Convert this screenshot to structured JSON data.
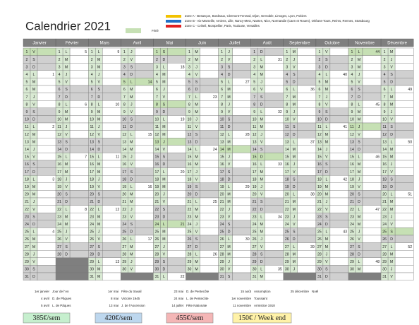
{
  "title": "Calendrier 2021",
  "legend": [
    {
      "label": "Zone A - Besançon, Bordeaux, Clermont-Ferrand, Dijon, Grenoble, Limoges, Lyon, Poitiers",
      "color": "#f2c200"
    },
    {
      "label": "Zone B - Aix-Marseille, Amiens, Lille, Nancy-Metz, Nantes, Nice, Normandie (Caen et Rouen), Orléans-Tours, Reims, Rennes, Strasbourg",
      "color": "#1f6fc5"
    },
    {
      "label": "Zone C - Créteil, Montpellier, Paris, Toulouse, Versailles",
      "color": "#e02020"
    },
    {
      "label": "Férié",
      "color": "#c6e0b4"
    }
  ],
  "weekend_color": "#d0d0d0",
  "holiday_cells": [
    [
      0,
      1
    ],
    [
      3,
      5
    ],
    [
      4,
      1
    ],
    [
      4,
      8
    ],
    [
      4,
      13
    ],
    [
      4,
      24
    ],
    [
      6,
      14
    ],
    [
      7,
      15
    ],
    [
      10,
      1
    ],
    [
      10,
      11
    ],
    [
      11,
      25
    ]
  ],
  "months": [
    {
      "name": "Janvier",
      "days": [
        1,
        2,
        3,
        4,
        5,
        6,
        7,
        8,
        9,
        10,
        11,
        12,
        13,
        14,
        15,
        16,
        17,
        18,
        19,
        20,
        21,
        22,
        23,
        24,
        25,
        26,
        27,
        28,
        29,
        30,
        31
      ],
      "weekdays": [
        "V",
        "S",
        "D",
        "L",
        "M",
        "M",
        "J",
        "V",
        "S",
        "D",
        "L",
        "M",
        "M",
        "J",
        "V",
        "S",
        "D",
        "L",
        "M",
        "M",
        "J",
        "V",
        "S",
        "D",
        "L",
        "M",
        "M",
        "J",
        "V",
        "S",
        "D"
      ],
      "weeks": [
        {
          "day": 4,
          "week": 1
        },
        {
          "day": 11,
          "week": 2
        },
        {
          "day": 18,
          "week": 3
        },
        {
          "day": 25,
          "week": 4
        }
      ]
    },
    {
      "name": "Février",
      "days": [
        1,
        2,
        3,
        4,
        5,
        6,
        7,
        8,
        9,
        10,
        11,
        12,
        13,
        14,
        15,
        16,
        17,
        18,
        19,
        20,
        21,
        22,
        23,
        24,
        25,
        26,
        27,
        28
      ],
      "weekdays": [
        "L",
        "M",
        "M",
        "J",
        "V",
        "S",
        "D",
        "L",
        "M",
        "M",
        "J",
        "V",
        "S",
        "D",
        "L",
        "M",
        "M",
        "J",
        "V",
        "S",
        "D",
        "L",
        "M",
        "M",
        "J",
        "V",
        "S",
        "D"
      ],
      "weeks": [
        {
          "day": 1,
          "week": 5
        },
        {
          "day": 8,
          "week": 6
        },
        {
          "day": 15,
          "week": 7
        },
        {
          "day": 22,
          "week": 8
        }
      ]
    },
    {
      "name": "Mars",
      "days": [
        1,
        2,
        3,
        4,
        5,
        6,
        7,
        8,
        9,
        10,
        11,
        12,
        13,
        14,
        15,
        16,
        17,
        18,
        19,
        20,
        21,
        22,
        23,
        24,
        25,
        26,
        27,
        28,
        29,
        30,
        31
      ],
      "weekdays": [
        "L",
        "M",
        "M",
        "J",
        "V",
        "S",
        "D",
        "L",
        "M",
        "M",
        "J",
        "V",
        "S",
        "D",
        "L",
        "M",
        "M",
        "J",
        "V",
        "S",
        "D",
        "L",
        "M",
        "M",
        "J",
        "V",
        "S",
        "D",
        "L",
        "M",
        "M"
      ],
      "weeks": [
        {
          "day": 1,
          "week": 9
        },
        {
          "day": 8,
          "week": 10
        },
        {
          "day": 15,
          "week": 11
        },
        {
          "day": 22,
          "week": 12
        },
        {
          "day": 29,
          "week": 13
        }
      ]
    },
    {
      "name": "Avril",
      "days": [
        1,
        2,
        3,
        4,
        5,
        6,
        7,
        8,
        9,
        10,
        11,
        12,
        13,
        14,
        15,
        16,
        17,
        18,
        19,
        20,
        21,
        22,
        23,
        24,
        25,
        26,
        27,
        28,
        29,
        30
      ],
      "weekdays": [
        "J",
        "V",
        "S",
        "D",
        "L",
        "M",
        "M",
        "J",
        "V",
        "S",
        "D",
        "L",
        "M",
        "M",
        "J",
        "V",
        "S",
        "D",
        "L",
        "M",
        "M",
        "J",
        "V",
        "S",
        "D",
        "L",
        "M",
        "M",
        "J",
        "V"
      ],
      "weeks": [
        {
          "day": 5,
          "week": 14
        },
        {
          "day": 12,
          "week": 15
        },
        {
          "day": 19,
          "week": 16
        },
        {
          "day": 26,
          "week": 17
        }
      ]
    },
    {
      "name": "Mai",
      "days": [
        1,
        2,
        3,
        4,
        5,
        6,
        7,
        8,
        9,
        10,
        11,
        12,
        13,
        14,
        15,
        16,
        17,
        18,
        19,
        20,
        21,
        22,
        23,
        24,
        25,
        26,
        27,
        28,
        29,
        30,
        31
      ],
      "weekdays": [
        "S",
        "D",
        "L",
        "M",
        "M",
        "J",
        "V",
        "S",
        "D",
        "L",
        "M",
        "M",
        "J",
        "V",
        "S",
        "D",
        "L",
        "M",
        "M",
        "J",
        "V",
        "S",
        "D",
        "L",
        "M",
        "M",
        "J",
        "V",
        "S",
        "D",
        "L"
      ],
      "weeks": [
        {
          "day": 3,
          "week": 18
        },
        {
          "day": 10,
          "week": 19
        },
        {
          "day": 17,
          "week": 20
        },
        {
          "day": 24,
          "week": 21
        },
        {
          "day": 31,
          "week": 22
        }
      ]
    },
    {
      "name": "Juin",
      "days": [
        1,
        2,
        3,
        4,
        5,
        6,
        7,
        8,
        9,
        10,
        11,
        12,
        13,
        14,
        15,
        16,
        17,
        18,
        19,
        20,
        21,
        22,
        23,
        24,
        25,
        26,
        27,
        28,
        29,
        30
      ],
      "weekdays": [
        "M",
        "M",
        "J",
        "V",
        "S",
        "D",
        "L",
        "M",
        "M",
        "J",
        "V",
        "S",
        "D",
        "L",
        "M",
        "M",
        "J",
        "V",
        "S",
        "D",
        "L",
        "M",
        "M",
        "J",
        "V",
        "S",
        "D",
        "L",
        "M",
        "M"
      ],
      "weeks": [
        {
          "day": 7,
          "week": 23
        },
        {
          "day": 14,
          "week": 24
        },
        {
          "day": 21,
          "week": 25
        },
        {
          "day": 28,
          "week": 26
        }
      ]
    },
    {
      "name": "Juillet",
      "days": [
        1,
        2,
        3,
        4,
        5,
        6,
        7,
        8,
        9,
        10,
        11,
        12,
        13,
        14,
        15,
        16,
        17,
        18,
        19,
        20,
        21,
        22,
        23,
        24,
        25,
        26,
        27,
        28,
        29,
        30,
        31
      ],
      "weekdays": [
        "J",
        "V",
        "S",
        "D",
        "L",
        "M",
        "M",
        "J",
        "V",
        "S",
        "D",
        "L",
        "M",
        "M",
        "J",
        "V",
        "S",
        "D",
        "L",
        "M",
        "M",
        "J",
        "V",
        "S",
        "D",
        "L",
        "M",
        "M",
        "J",
        "V",
        "S"
      ],
      "weeks": [
        {
          "day": 5,
          "week": 27
        },
        {
          "day": 12,
          "week": 28
        },
        {
          "day": 19,
          "week": 29
        },
        {
          "day": 26,
          "week": 30
        }
      ]
    },
    {
      "name": "Août",
      "days": [
        1,
        2,
        3,
        4,
        5,
        6,
        7,
        8,
        9,
        10,
        11,
        12,
        13,
        14,
        15,
        16,
        17,
        18,
        19,
        20,
        21,
        22,
        23,
        24,
        25,
        26,
        27,
        28,
        29,
        30,
        31
      ],
      "weekdays": [
        "D",
        "L",
        "M",
        "M",
        "J",
        "V",
        "S",
        "D",
        "L",
        "M",
        "M",
        "J",
        "V",
        "S",
        "D",
        "L",
        "M",
        "M",
        "J",
        "V",
        "S",
        "D",
        "L",
        "M",
        "M",
        "J",
        "V",
        "S",
        "D",
        "L",
        "M"
      ],
      "weeks": [
        {
          "day": 2,
          "week": 31
        },
        {
          "day": 9,
          "week": 32
        },
        {
          "day": 16,
          "week": 33
        },
        {
          "day": 23,
          "week": 34
        },
        {
          "day": 30,
          "week": 35
        }
      ]
    },
    {
      "name": "Septembre",
      "days": [
        1,
        2,
        3,
        4,
        5,
        6,
        7,
        8,
        9,
        10,
        11,
        12,
        13,
        14,
        15,
        16,
        17,
        18,
        19,
        20,
        21,
        22,
        23,
        24,
        25,
        26,
        27,
        28,
        29,
        30
      ],
      "weekdays": [
        "M",
        "J",
        "V",
        "S",
        "D",
        "L",
        "M",
        "M",
        "J",
        "V",
        "S",
        "D",
        "L",
        "M",
        "M",
        "J",
        "V",
        "S",
        "D",
        "L",
        "M",
        "M",
        "J",
        "V",
        "S",
        "D",
        "L",
        "M",
        "M",
        "J"
      ],
      "weeks": [
        {
          "day": 6,
          "week": 36
        },
        {
          "day": 13,
          "week": 37
        },
        {
          "day": 20,
          "week": 38
        },
        {
          "day": 27,
          "week": 39
        }
      ]
    },
    {
      "name": "Octobre",
      "days": [
        1,
        2,
        3,
        4,
        5,
        6,
        7,
        8,
        9,
        10,
        11,
        12,
        13,
        14,
        15,
        16,
        17,
        18,
        19,
        20,
        21,
        22,
        23,
        24,
        25,
        26,
        27,
        28,
        29,
        30,
        31
      ],
      "weekdays": [
        "V",
        "S",
        "D",
        "L",
        "M",
        "M",
        "J",
        "V",
        "S",
        "D",
        "L",
        "M",
        "M",
        "J",
        "V",
        "S",
        "D",
        "L",
        "M",
        "M",
        "J",
        "V",
        "S",
        "D",
        "L",
        "M",
        "M",
        "J",
        "V",
        "S",
        "D"
      ],
      "weeks": [
        {
          "day": 4,
          "week": 40
        },
        {
          "day": 11,
          "week": 41
        },
        {
          "day": 18,
          "week": 42
        },
        {
          "day": 25,
          "week": 43
        }
      ]
    },
    {
      "name": "Novembre",
      "days": [
        1,
        2,
        3,
        4,
        5,
        6,
        7,
        8,
        9,
        10,
        11,
        12,
        13,
        14,
        15,
        16,
        17,
        18,
        19,
        20,
        21,
        22,
        23,
        24,
        25,
        26,
        27,
        28,
        29,
        30
      ],
      "weekdays": [
        "L",
        "M",
        "M",
        "J",
        "V",
        "S",
        "D",
        "L",
        "M",
        "M",
        "J",
        "V",
        "S",
        "D",
        "L",
        "M",
        "M",
        "J",
        "V",
        "S",
        "D",
        "L",
        "M",
        "M",
        "J",
        "V",
        "S",
        "D",
        "L",
        "M"
      ],
      "weeks": [
        {
          "day": 1,
          "week": 44
        },
        {
          "day": 8,
          "week": 45
        },
        {
          "day": 15,
          "week": 46
        },
        {
          "day": 22,
          "week": 47
        },
        {
          "day": 29,
          "week": 48
        }
      ]
    },
    {
      "name": "Décembre",
      "days": [
        1,
        2,
        3,
        4,
        5,
        6,
        7,
        8,
        9,
        10,
        11,
        12,
        13,
        14,
        15,
        16,
        17,
        18,
        19,
        20,
        21,
        22,
        23,
        24,
        25,
        26,
        27,
        28,
        29,
        30,
        31
      ],
      "weekdays": [
        "M",
        "J",
        "V",
        "S",
        "D",
        "L",
        "M",
        "M",
        "J",
        "V",
        "S",
        "D",
        "L",
        "M",
        "M",
        "J",
        "V",
        "S",
        "D",
        "L",
        "M",
        "M",
        "J",
        "V",
        "S",
        "D",
        "L",
        "M",
        "M",
        "J",
        "V"
      ],
      "weeks": [
        {
          "day": 6,
          "week": 49
        },
        {
          "day": 13,
          "week": 50
        },
        {
          "day": 20,
          "week": 51
        },
        {
          "day": 27,
          "week": 52
        }
      ]
    }
  ],
  "holidays": [
    [
      {
        "date": "1er janvier",
        "name": "Jour de l'An"
      },
      {
        "date": "4 avril",
        "name": "D. de Pâques"
      },
      {
        "date": "5 avril",
        "name": "L. de Pâques"
      }
    ],
    [
      {
        "date": "1er mai",
        "name": "Fête du travail"
      },
      {
        "date": "8 mai",
        "name": "Victoire 1945"
      },
      {
        "date": "13 mai",
        "name": "J. de l'Ascension"
      }
    ],
    [
      {
        "date": "23 mai",
        "name": "D. de Pentecôte"
      },
      {
        "date": "24 mai",
        "name": "L. de Pentecôte"
      },
      {
        "date": "14 juillet",
        "name": "Fête Nationale"
      }
    ],
    [
      {
        "date": "15 août",
        "name": "Assomption"
      },
      {
        "date": "1er novembre",
        "name": "Toussaint"
      },
      {
        "date": "11 novembre",
        "name": "Armistice 1918"
      }
    ],
    [
      {
        "date": "25 décembre",
        "name": "Noël"
      }
    ]
  ],
  "prices": [
    {
      "label": "385€/sem",
      "color": "#c6efce"
    },
    {
      "label": "420€/sem",
      "color": "#bdd7ee"
    },
    {
      "label": "455€/sem",
      "color": "#f4b6b6"
    },
    {
      "label": "150€ / Week end",
      "color": "#fff2a8"
    }
  ]
}
